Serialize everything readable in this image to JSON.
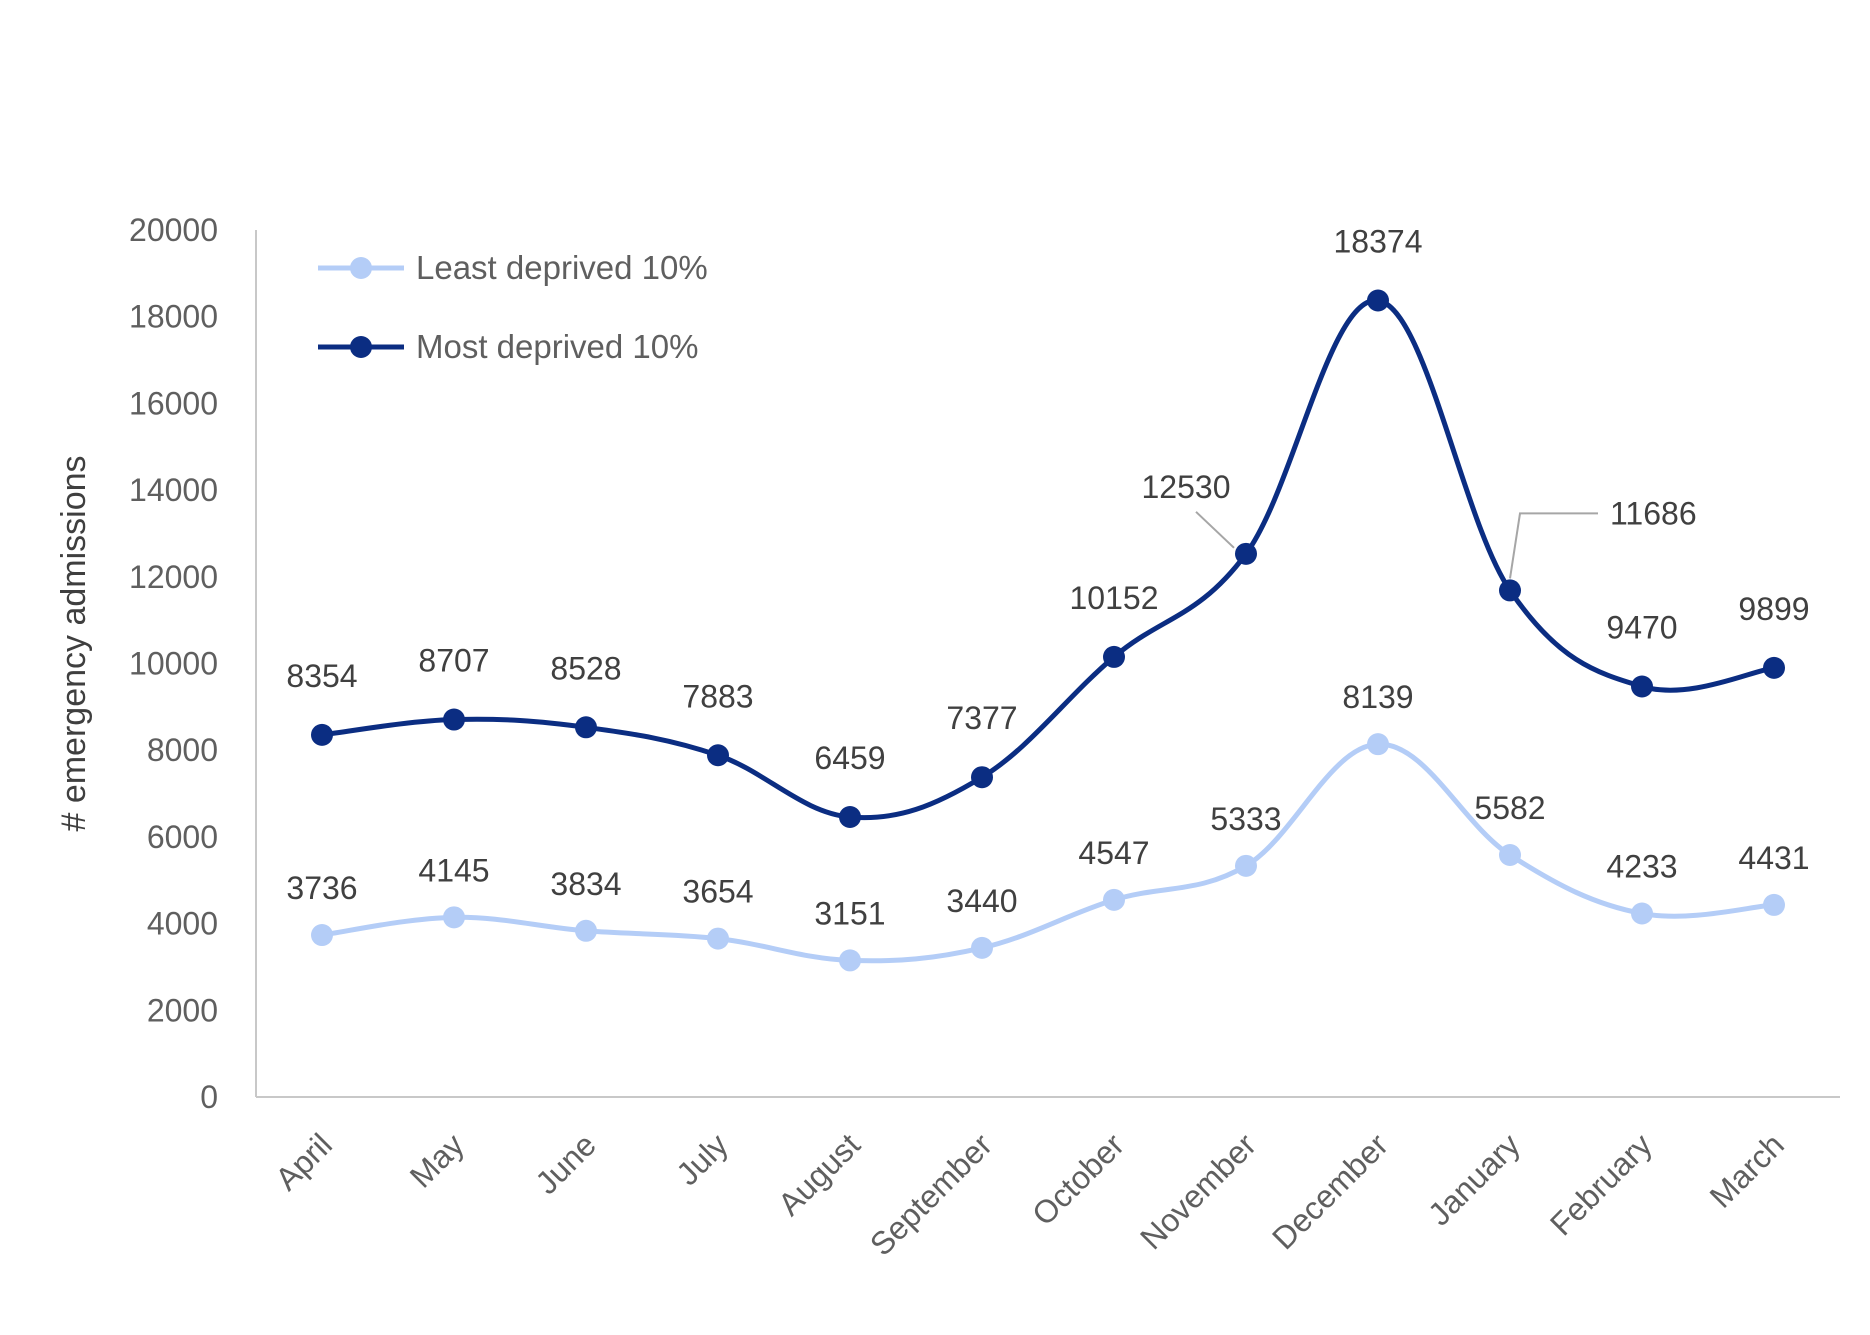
{
  "chart_data": {
    "type": "line",
    "title": "",
    "xlabel": "",
    "ylabel": "# emergency admissions",
    "ylim": [
      0,
      20000
    ],
    "yticks": [
      0,
      2000,
      4000,
      6000,
      8000,
      10000,
      12000,
      14000,
      16000,
      18000,
      20000
    ],
    "categories": [
      "April",
      "May",
      "June",
      "July",
      "August",
      "September",
      "October",
      "November",
      "December",
      "January",
      "February",
      "March"
    ],
    "grid": false,
    "legend_position": "top-left",
    "series": [
      {
        "name": "Least deprived 10%",
        "color": "#b4cdf7",
        "values": [
          3736,
          4145,
          3834,
          3654,
          3151,
          3440,
          4547,
          5333,
          8139,
          5582,
          4233,
          4431
        ]
      },
      {
        "name": "Most deprived 10%",
        "color": "#0b2d82",
        "values": [
          8354,
          8707,
          8528,
          7883,
          6459,
          7377,
          10152,
          12530,
          18374,
          11686,
          9470,
          9899
        ]
      }
    ]
  },
  "colors": {
    "axis_text": "#5f5f5f",
    "axis_line": "#c8c8c8",
    "leader_line": "#a6a6a6"
  }
}
